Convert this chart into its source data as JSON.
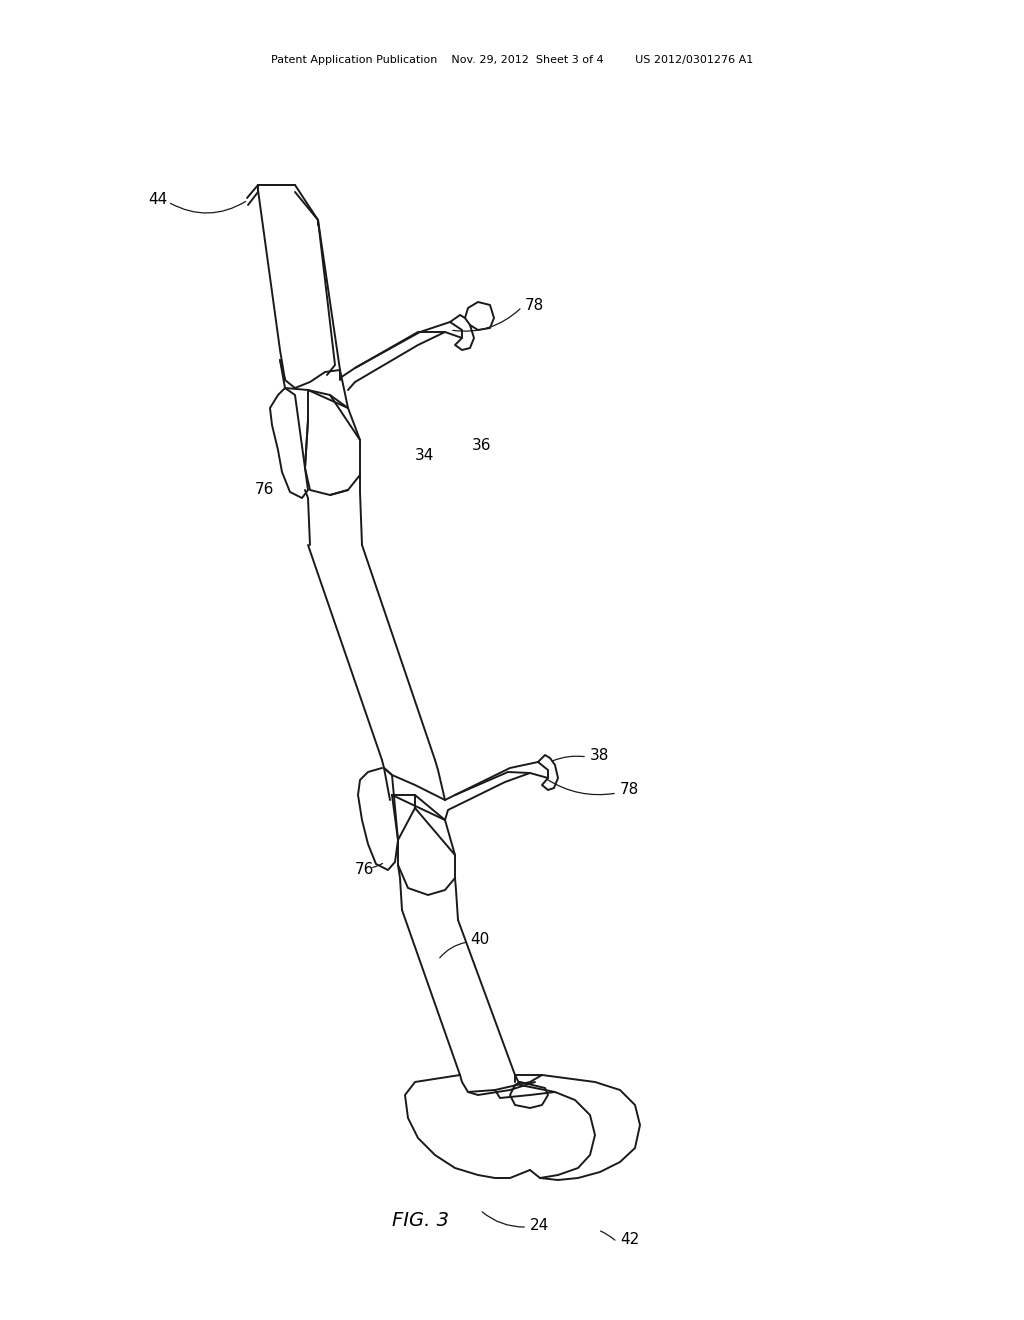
{
  "bg_color": "#ffffff",
  "line_color": "#1a1a1a",
  "line_width": 1.4,
  "fig_width": 10.24,
  "fig_height": 13.2,
  "header": "Patent Application Publication    Nov. 29, 2012  Sheet 3 of 4         US 2012/0301276 A1",
  "fig_label": "FIG. 3"
}
